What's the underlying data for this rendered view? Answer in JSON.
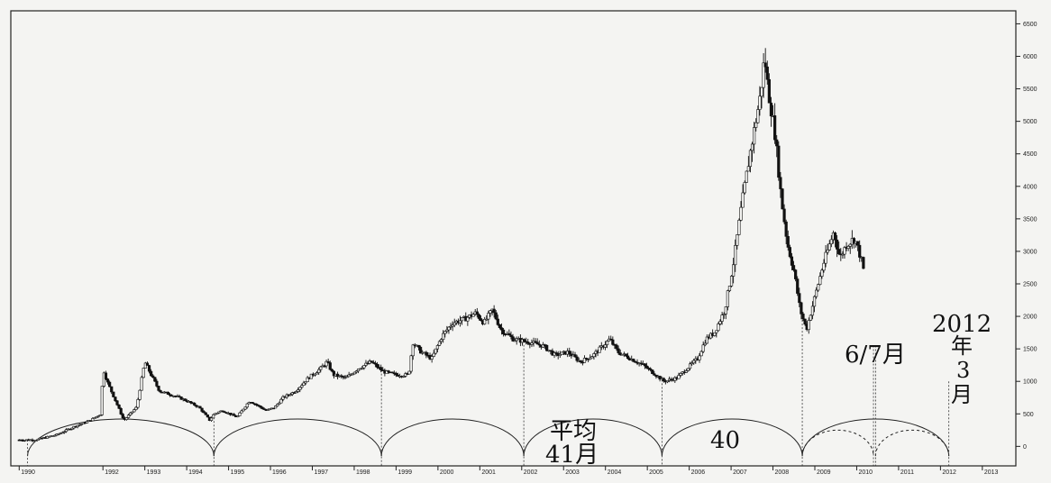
{
  "chart_data": {
    "type": "candlestick",
    "title": "",
    "xlabel": "",
    "ylabel": "",
    "x_ticks": [
      "1990",
      "1992",
      "1993",
      "1994",
      "1995",
      "1996",
      "1997",
      "1998",
      "1999",
      "2000",
      "2001",
      "2002",
      "2003",
      "2004",
      "2005",
      "2006",
      "2007",
      "2008",
      "2009",
      "2010",
      "2011",
      "2012",
      "2013"
    ],
    "y_ticks": [
      0,
      500,
      1000,
      1500,
      2000,
      2500,
      3000,
      3500,
      4000,
      4500,
      5000,
      5500,
      6000,
      6500
    ],
    "ylim": [
      -300,
      6700
    ],
    "xlim": [
      1989.8,
      2013.8
    ],
    "price_path": [
      [
        1990.0,
        100
      ],
      [
        1990.4,
        100
      ],
      [
        1990.9,
        180
      ],
      [
        1991.3,
        300
      ],
      [
        1991.7,
        400
      ],
      [
        1991.95,
        500
      ],
      [
        1992.0,
        1200
      ],
      [
        1992.1,
        1000
      ],
      [
        1992.3,
        700
      ],
      [
        1992.5,
        400
      ],
      [
        1992.8,
        600
      ],
      [
        1993.0,
        1300
      ],
      [
        1993.15,
        1100
      ],
      [
        1993.35,
        850
      ],
      [
        1993.7,
        780
      ],
      [
        1994.0,
        700
      ],
      [
        1994.3,
        600
      ],
      [
        1994.55,
        400
      ],
      [
        1994.65,
        500
      ],
      [
        1994.85,
        550
      ],
      [
        1995.2,
        450
      ],
      [
        1995.5,
        700
      ],
      [
        1995.9,
        550
      ],
      [
        1996.1,
        600
      ],
      [
        1996.3,
        750
      ],
      [
        1996.6,
        850
      ],
      [
        1996.9,
        1050
      ],
      [
        1997.2,
        1200
      ],
      [
        1997.35,
        1300
      ],
      [
        1997.5,
        1100
      ],
      [
        1997.8,
        1050
      ],
      [
        1998.1,
        1200
      ],
      [
        1998.4,
        1300
      ],
      [
        1998.7,
        1150
      ],
      [
        1999.0,
        1100
      ],
      [
        1999.3,
        1100
      ],
      [
        1999.4,
        1600
      ],
      [
        1999.6,
        1450
      ],
      [
        1999.85,
        1350
      ],
      [
        2000.1,
        1700
      ],
      [
        2000.35,
        1900
      ],
      [
        2000.6,
        1950
      ],
      [
        2000.9,
        2050
      ],
      [
        2001.1,
        1900
      ],
      [
        2001.3,
        2100
      ],
      [
        2001.5,
        1800
      ],
      [
        2001.8,
        1650
      ],
      [
        2002.2,
        1600
      ],
      [
        2002.5,
        1550
      ],
      [
        2002.8,
        1400
      ],
      [
        2003.1,
        1450
      ],
      [
        2003.4,
        1300
      ],
      [
        2003.7,
        1400
      ],
      [
        2003.95,
        1550
      ],
      [
        2004.1,
        1650
      ],
      [
        2004.3,
        1450
      ],
      [
        2004.6,
        1350
      ],
      [
        2004.9,
        1250
      ],
      [
        2005.2,
        1100
      ],
      [
        2005.4,
        1000
      ],
      [
        2005.7,
        1050
      ],
      [
        2005.95,
        1200
      ],
      [
        2006.2,
        1350
      ],
      [
        2006.4,
        1650
      ],
      [
        2006.6,
        1750
      ],
      [
        2006.85,
        2100
      ],
      [
        2007.05,
        2800
      ],
      [
        2007.25,
        3700
      ],
      [
        2007.45,
        4500
      ],
      [
        2007.7,
        5400
      ],
      [
        2007.8,
        6000
      ],
      [
        2007.88,
        5500
      ],
      [
        2008.05,
        4800
      ],
      [
        2008.2,
        3800
      ],
      [
        2008.35,
        3100
      ],
      [
        2008.5,
        2700
      ],
      [
        2008.65,
        2100
      ],
      [
        2008.8,
        1800
      ],
      [
        2009.0,
        2300
      ],
      [
        2009.2,
        2800
      ],
      [
        2009.45,
        3300
      ],
      [
        2009.6,
        2900
      ],
      [
        2009.75,
        3100
      ],
      [
        2009.95,
        3200
      ],
      [
        2010.1,
        2900
      ],
      [
        2010.2,
        2600
      ]
    ],
    "cycles": [
      {
        "start": 1990.2,
        "end": 1994.65,
        "height": 420
      },
      {
        "start": 1994.65,
        "end": 1998.65,
        "height": 420
      },
      {
        "start": 1998.65,
        "end": 2002.05,
        "height": 420
      },
      {
        "start": 2002.05,
        "end": 2005.35,
        "height": 420
      },
      {
        "start": 2005.35,
        "end": 2008.7,
        "height": 420
      },
      {
        "start": 2008.7,
        "end": 2012.2,
        "height": 420
      }
    ],
    "sub_cycles": [
      {
        "start": 2008.7,
        "end": 2010.4,
        "height": 250
      },
      {
        "start": 2010.45,
        "end": 2012.2,
        "height": 250
      }
    ],
    "cycle_markers": [
      1990.2,
      1994.65,
      1998.65,
      2002.05,
      2005.35,
      2008.7,
      2010.4,
      2010.45,
      2012.2
    ],
    "annotations": {
      "avg_label_1": "平均",
      "avg_label_2": "41月",
      "count_label": "40",
      "date_label_1": "6/7月",
      "date_label_2": "2012",
      "date_label_3": "年",
      "date_label_4": "3",
      "date_label_5": "月"
    }
  }
}
